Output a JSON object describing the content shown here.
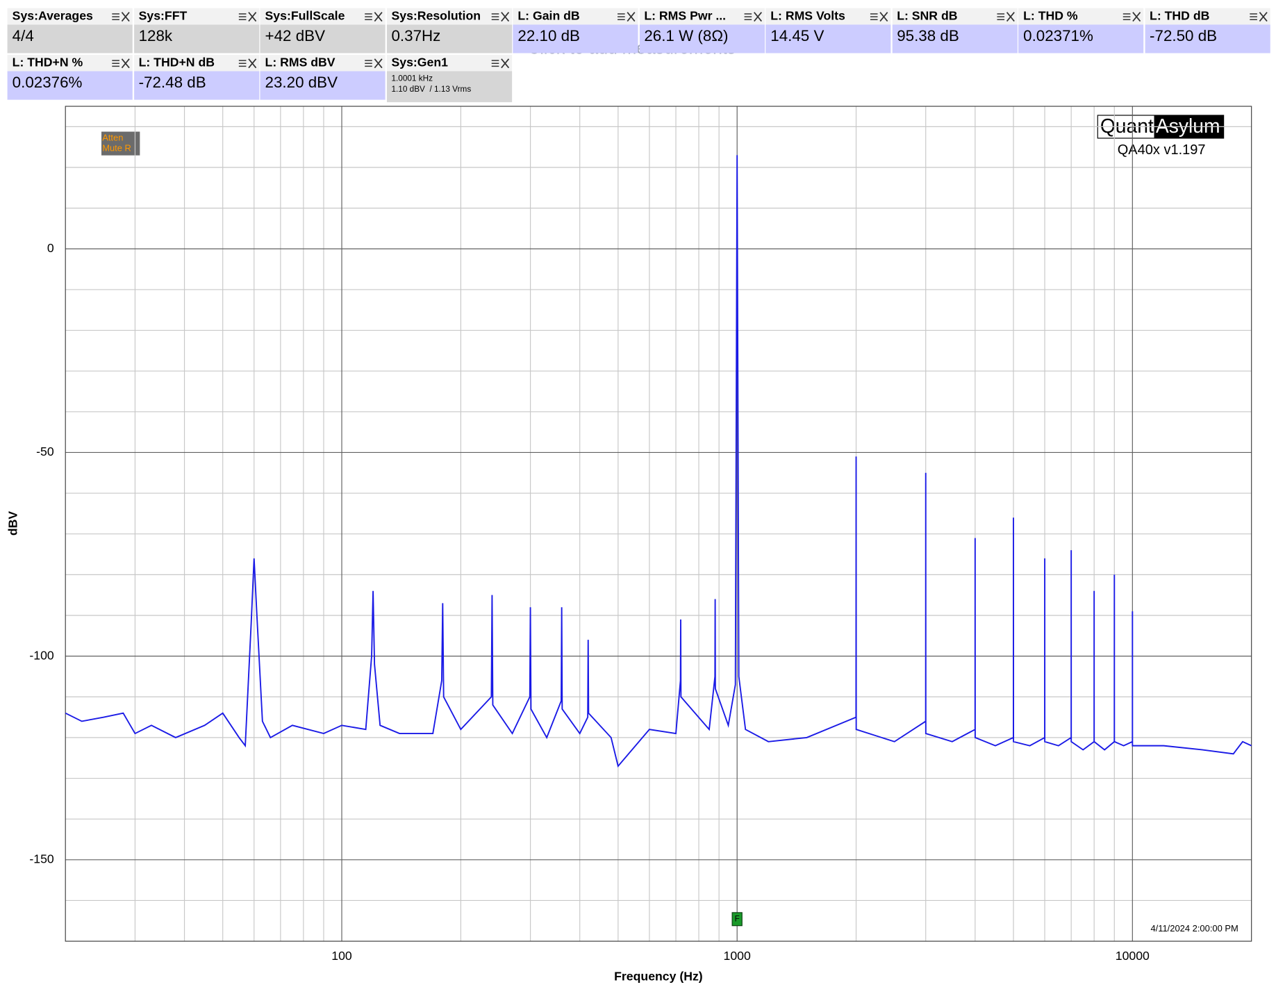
{
  "measurements": [
    {
      "title": "Sys:Averages",
      "value": "4/4",
      "kind": "sys"
    },
    {
      "title": "Sys:FFT",
      "value": "128k",
      "kind": "sys"
    },
    {
      "title": "Sys:FullScale",
      "value": "+42 dBV",
      "kind": "sys"
    },
    {
      "title": "Sys:Resolution",
      "value": "0.37Hz",
      "kind": "sys"
    },
    {
      "title": "L: Gain dB",
      "value": "22.10 dB",
      "kind": "ch"
    },
    {
      "title": "L: RMS Pwr ...",
      "value": "26.1 W (8Ω)",
      "kind": "ch"
    },
    {
      "title": "L: RMS Volts",
      "value": "14.45 V",
      "kind": "ch"
    },
    {
      "title": "L: SNR dB",
      "value": "95.38 dB",
      "kind": "ch"
    },
    {
      "title": "L: THD %",
      "value": "0.02371%",
      "kind": "ch"
    },
    {
      "title": "L: THD dB",
      "value": "-72.50 dB",
      "kind": "ch"
    },
    {
      "title": "L: THD+N %",
      "value": "0.02376%",
      "kind": "ch"
    },
    {
      "title": "L: THD+N dB",
      "value": "-72.48 dB",
      "kind": "ch"
    },
    {
      "title": "L: RMS dBV",
      "value": "23.20 dBV",
      "kind": "ch"
    },
    {
      "title": "Sys:Gen1",
      "lines": [
        "1.0001 kHz",
        "1.10 dBV  / 1.13 Vrms"
      ],
      "kind": "sys"
    }
  ],
  "hint": "Click to add measurements",
  "chart_data": {
    "type": "line",
    "x_label": "Frequency (Hz)",
    "y_label": "dBV",
    "xlim": [
      20,
      20000
    ],
    "ylim": [
      -170,
      35
    ],
    "xscale": "log",
    "grid": true,
    "xticks": [
      100,
      1000,
      10000
    ],
    "yticks": [
      -150,
      -100,
      -50,
      0
    ],
    "status_badge": [
      "Atten",
      "Mute R"
    ],
    "brand": [
      "Quant",
      "Asylum"
    ],
    "version": "QA40x v1.197",
    "timestamp": "4/11/2024 2:00:00 PM",
    "marker": {
      "label": "F",
      "x": 1000
    },
    "x": [
      20,
      22,
      25,
      28,
      30,
      33,
      38,
      45,
      50,
      55,
      57,
      59,
      60,
      61,
      63,
      66,
      75,
      90,
      100,
      115,
      119,
      120,
      121,
      125,
      140,
      170,
      179,
      180,
      181,
      200,
      239,
      240,
      241,
      270,
      299,
      300,
      301,
      330,
      359,
      360,
      361,
      400,
      419,
      420,
      421,
      480,
      500,
      600,
      700,
      719,
      720,
      721,
      850,
      879,
      880,
      881,
      950,
      990,
      1000,
      1010,
      1050,
      1200,
      1500,
      1999,
      2000,
      2001,
      2500,
      2999,
      3000,
      3001,
      3500,
      3999,
      4000,
      4001,
      4500,
      4999,
      5000,
      5001,
      5500,
      5999,
      6000,
      6001,
      6500,
      6999,
      7000,
      7001,
      7500,
      7999,
      8000,
      8001,
      8500,
      8999,
      9000,
      9001,
      9500,
      9999,
      10000,
      10001,
      12000,
      15000,
      18000,
      19000,
      20000
    ],
    "series": [
      {
        "name": "L",
        "color": "#1a1ae6",
        "values": [
          -114,
          -116,
          -115,
          -114,
          -119,
          -117,
          -120,
          -117,
          -114,
          -120,
          -122,
          -92,
          -76,
          -90,
          -116,
          -120,
          -117,
          -119,
          -117,
          -118,
          -100,
          -84,
          -102,
          -117,
          -119,
          -119,
          -106,
          -87,
          -110,
          -118,
          -110,
          -85,
          -112,
          -119,
          -110,
          -88,
          -113,
          -120,
          -111,
          -88,
          -113,
          -119,
          -115,
          -96,
          -114,
          -120,
          -127,
          -118,
          -119,
          -106,
          -91,
          -110,
          -118,
          -105,
          -86,
          -108,
          -117,
          -107,
          23,
          -105,
          -118,
          -121,
          -120,
          -115,
          -51,
          -118,
          -121,
          -116,
          -55,
          -119,
          -121,
          -118,
          -71,
          -120,
          -122,
          -120,
          -66,
          -121,
          -122,
          -120,
          -76,
          -121,
          -122,
          -120,
          -74,
          -121,
          -123,
          -121,
          -84,
          -121,
          -123,
          -121,
          -80,
          -121,
          -122,
          -121,
          -89,
          -122,
          -122,
          -123,
          -124,
          -121,
          -122
        ]
      }
    ]
  }
}
